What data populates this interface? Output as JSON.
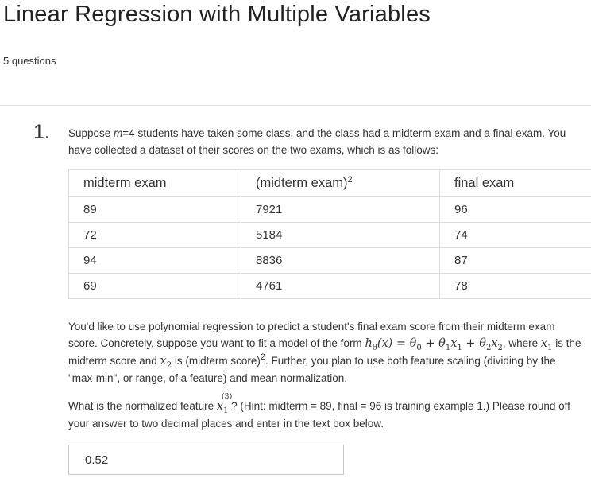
{
  "quiz": {
    "title": "Linear Regression with Multiple Variables",
    "question_count": "5 questions"
  },
  "question": {
    "number": "1.",
    "intro_a": "Suppose ",
    "intro_m": "m",
    "intro_b": "=4 students have taken some class, and the class had a midterm exam and a final exam. You have collected a dataset of their scores on the two exams, which is as follows:",
    "table": {
      "headers": [
        "midterm exam",
        "(midterm exam)",
        "final exam"
      ],
      "header_sup": "2",
      "rows": [
        [
          "89",
          "7921",
          "96"
        ],
        [
          "72",
          "5184",
          "74"
        ],
        [
          "94",
          "8836",
          "87"
        ],
        [
          "69",
          "4761",
          "78"
        ]
      ]
    },
    "para1_a": "You'd like to use polynomial regression to predict a student's final exam score from their midterm exam score. Concretely, suppose you want to fit a model of the form ",
    "model_formula": "hθ(x) = θ0 + θ1x1 + θ2x2",
    "para1_b": ", where ",
    "x1": "x1",
    "para1_c": " is the midterm score and ",
    "x2": "x2",
    "para1_d": " is (midterm score)",
    "para1_sup": "2",
    "para1_e": ". Further, you plan to use both feature scaling (dividing by the \"max-min\", or range, of a feature) and mean normalization.",
    "para2_a": "What is the normalized feature ",
    "feature": "x1(3)",
    "para2_b": "? (Hint: midterm = 89, final = 96 is training example 1.) Please round off your answer to two decimal places and enter in the text box below."
  },
  "answer": {
    "value": "0.52"
  }
}
